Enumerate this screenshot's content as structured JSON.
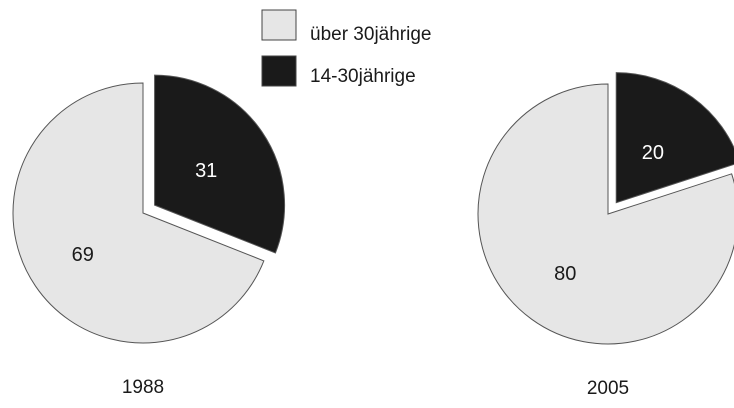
{
  "legend": {
    "items": [
      {
        "label": "über 30jährige",
        "color": "#e6e6e6"
      },
      {
        "label": "14-30jährige",
        "color": "#1a1a1a"
      }
    ]
  },
  "chart_data": [
    {
      "type": "pie",
      "title": "1988",
      "categories": [
        "14-30jährige",
        "über 30jährige"
      ],
      "values": [
        31,
        69
      ],
      "colors": [
        "#1a1a1a",
        "#e6e6e6"
      ],
      "exploded": "14-30jährige",
      "legend": "top"
    },
    {
      "type": "pie",
      "title": "2005",
      "categories": [
        "14-30jährige",
        "über 30jährige"
      ],
      "values": [
        20,
        80
      ],
      "colors": [
        "#1a1a1a",
        "#e6e6e6"
      ],
      "exploded": "14-30jährige",
      "legend": "top"
    }
  ]
}
